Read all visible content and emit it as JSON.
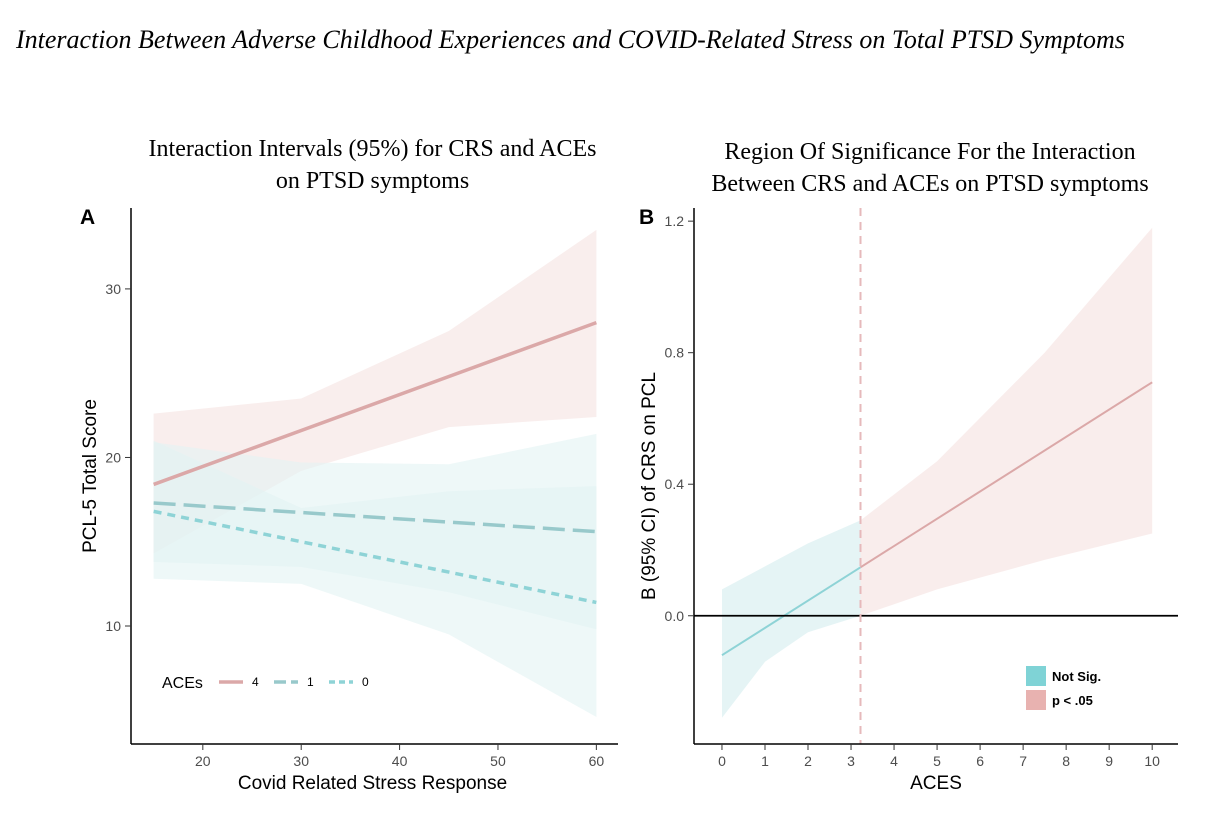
{
  "figure_title": "Interaction Between Adverse Childhood Experiences and COVID-Related Stress on Total PTSD Symptoms",
  "colors": {
    "high": "#dba8a8",
    "high_band": "#f8ebea",
    "low": "#8ed3d6",
    "mid": "#98c9cb",
    "low_band": "#e2f3f4",
    "not_sig_key": "#7fd3d6",
    "sig_key": "#e8b2b0",
    "refline": "#e6b9bb"
  },
  "chart_data": [
    {
      "panel": "A",
      "type": "line",
      "title_lines": [
        "Interaction Intervals (95%) for CRS and ACEs",
        "on PTSD symptoms"
      ],
      "xlabel": "Covid Related Stress Response",
      "ylabel": "PCL-5 Total  Score",
      "xlim": [
        12.7,
        62.2
      ],
      "ylim": [
        3.0,
        34.8
      ],
      "xticks": [
        20,
        30,
        40,
        50,
        60
      ],
      "yticks": [
        10,
        20,
        30
      ],
      "grid": false,
      "legend": {
        "position": "bottom-left",
        "title": "ACEs",
        "entries": [
          {
            "label": "4",
            "style": "solid"
          },
          {
            "label": "1",
            "style": "longdash"
          },
          {
            "label": "0",
            "style": "dashed"
          }
        ]
      },
      "series": [
        {
          "name": "4",
          "style": "solid",
          "x": [
            15,
            60
          ],
          "y": [
            18.4,
            28.0
          ],
          "band_x": [
            15,
            30,
            45,
            60
          ],
          "band_lower": [
            14.3,
            19.2,
            21.8,
            22.4
          ],
          "band_upper": [
            22.6,
            23.5,
            27.5,
            33.5
          ]
        },
        {
          "name": "1",
          "style": "longdash",
          "x": [
            15,
            60
          ],
          "y": [
            17.3,
            15.6
          ],
          "band_x": [
            15,
            30,
            45,
            60
          ],
          "band_lower": [
            13.8,
            13.5,
            12.0,
            9.8
          ],
          "band_upper": [
            20.9,
            19.7,
            19.6,
            21.4
          ]
        },
        {
          "name": "0",
          "style": "dashed",
          "x": [
            15,
            60
          ],
          "y": [
            16.8,
            11.4
          ],
          "band_x": [
            15,
            30,
            45,
            60
          ],
          "band_lower": [
            12.8,
            12.5,
            9.5,
            4.6
          ],
          "band_upper": [
            21.0,
            17.0,
            18.0,
            18.3
          ]
        }
      ]
    },
    {
      "panel": "B",
      "type": "line",
      "title_lines": [
        "Region Of Significance For the Interaction",
        "Between CRS and ACEs on PTSD symptoms"
      ],
      "xlabel": "ACES",
      "ylabel": "B (95% CI) of CRS on PCL",
      "xlim": [
        -0.65,
        10.6
      ],
      "ylim": [
        -0.39,
        1.24
      ],
      "xticks": [
        0,
        1,
        2,
        3,
        4,
        5,
        6,
        7,
        8,
        9,
        10
      ],
      "yticks": [
        0.0,
        0.4,
        0.8,
        1.2
      ],
      "yticklabels": [
        "0.0",
        "0.4",
        "0.8",
        "1.2"
      ],
      "grid": false,
      "threshold_x": 3.22,
      "reference_y": 0.0,
      "legend": {
        "position": "bottom-right",
        "entries": [
          {
            "label": "Not Sig.",
            "key": "not_sig"
          },
          {
            "label": "p < .05",
            "key": "sig"
          }
        ]
      },
      "estimate": {
        "x": [
          0,
          10
        ],
        "y": [
          -0.12,
          0.71
        ]
      },
      "band": {
        "x": [
          0,
          1,
          2,
          3.22,
          5,
          7.5,
          10
        ],
        "lower": [
          -0.31,
          -0.14,
          -0.05,
          0.0,
          0.08,
          0.17,
          0.25
        ],
        "upper": [
          0.08,
          0.15,
          0.22,
          0.29,
          0.47,
          0.8,
          1.18
        ]
      }
    }
  ]
}
